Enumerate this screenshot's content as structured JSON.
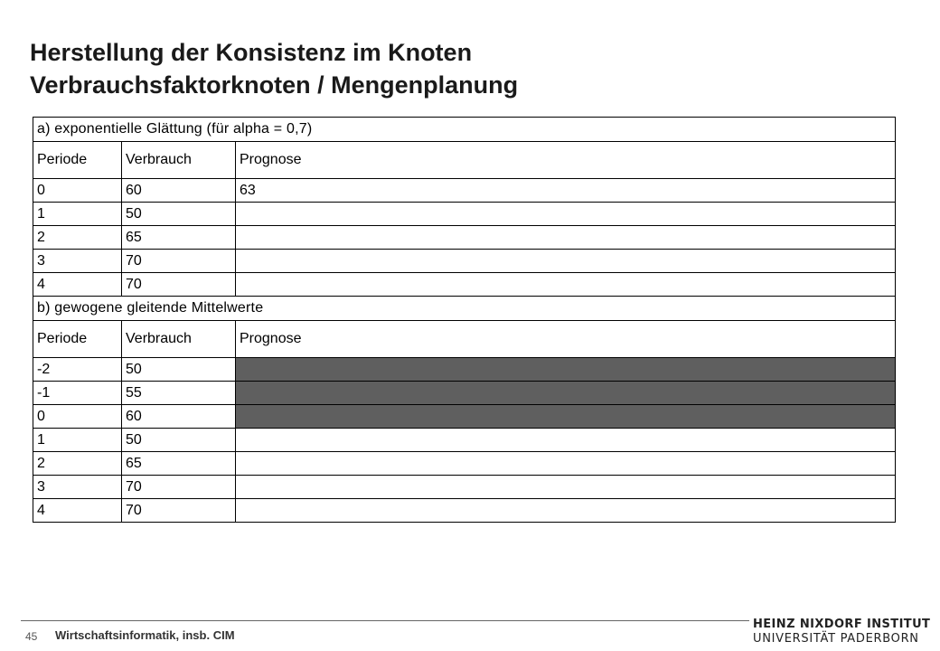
{
  "title": {
    "line1": "Herstellung der Konsistenz im Knoten",
    "line2": "Verbrauchsfaktorknoten / Mengenplanung"
  },
  "section_a": {
    "heading": "a) exponentielle Glättung (für alpha = 0,7)",
    "columns": [
      "Periode",
      "Verbrauch",
      "Prognose"
    ],
    "rows": [
      [
        "0",
        "60",
        "63"
      ],
      [
        "1",
        "50",
        ""
      ],
      [
        "2",
        "65",
        ""
      ],
      [
        "3",
        "70",
        ""
      ],
      [
        "4",
        "70",
        ""
      ]
    ]
  },
  "section_b": {
    "heading": "b) gewogene gleitende Mittelwerte",
    "columns": [
      "Periode",
      "Verbrauch",
      "Prognose"
    ],
    "rows": [
      [
        "-2",
        "50",
        ""
      ],
      [
        "-1",
        "55",
        ""
      ],
      [
        "0",
        "60",
        ""
      ],
      [
        "1",
        "50",
        ""
      ],
      [
        "2",
        "65",
        ""
      ],
      [
        "3",
        "70",
        ""
      ],
      [
        "4",
        "70",
        ""
      ]
    ],
    "shaded_rows": 3
  },
  "footer": {
    "page_number": "45",
    "department": "Wirtschaftsinformatik, insb. CIM",
    "logo_line1": "HEINZ NIXDORF INSTITUT",
    "logo_line2": "UNIVERSITÄT PADERBORN"
  },
  "colors": {
    "shaded_cell": "#5f5f5f",
    "grid_line": "#000000"
  }
}
